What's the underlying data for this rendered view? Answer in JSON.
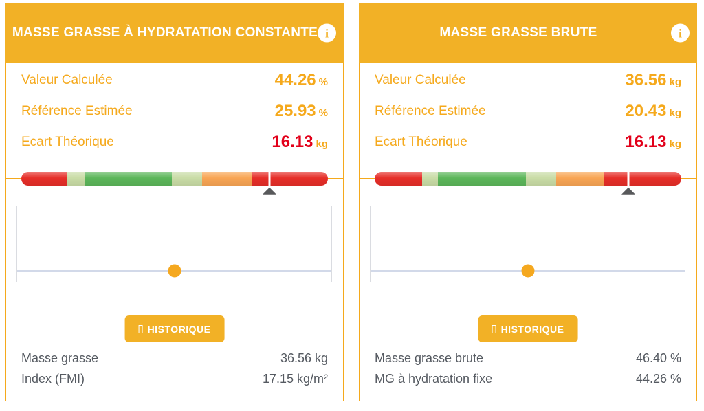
{
  "colors": {
    "orange": "#F5A91C",
    "red": "#E2001A",
    "header_bg": "#F2B126",
    "gauge_red": "#E62E28",
    "gauge_lightgreen": "#C9DCA6",
    "gauge_green": "#5CB65A",
    "gauge_orange": "#F8A554",
    "marker_gray": "#58595B"
  },
  "cards": [
    {
      "title": "MASSE GRASSE À HYDRATATION CONSTANTE",
      "info_icon": "i",
      "rows": [
        {
          "label": "Valeur Calculée",
          "value": "44.26",
          "unit": "%",
          "value_color": "orange"
        },
        {
          "label": "Référence Estimée",
          "value": "25.93",
          "unit": "%",
          "value_color": "orange"
        },
        {
          "label": "Ecart Théorique",
          "value": "16.13",
          "unit": "kg",
          "value_color": "red"
        }
      ],
      "gauge": {
        "segments": [
          {
            "color": "gauge_red",
            "width_pct": 15.0
          },
          {
            "color": "gauge_lightgreen",
            "width_pct": 5.9
          },
          {
            "color": "gauge_green",
            "width_pct": 28.1
          },
          {
            "color": "gauge_lightgreen",
            "width_pct": 10.0
          },
          {
            "color": "gauge_orange",
            "width_pct": 16.2
          },
          {
            "color": "gauge_red",
            "width_pct": 24.8
          }
        ],
        "marker_pct": 81.0
      },
      "history": {
        "dot_pct": 50
      },
      "history_button_label": "HISTORIQUE",
      "stats": [
        {
          "label": "Masse grasse",
          "value": "36.56 kg"
        },
        {
          "label": "Index (FMI)",
          "value": "17.15 kg/m²"
        }
      ]
    },
    {
      "title": "MASSE GRASSE BRUTE",
      "info_icon": "i",
      "rows": [
        {
          "label": "Valeur Calculée",
          "value": "36.56",
          "unit": "kg",
          "value_color": "orange"
        },
        {
          "label": "Référence Estimée",
          "value": "20.43",
          "unit": "kg",
          "value_color": "orange"
        },
        {
          "label": "Ecart Théorique",
          "value": "16.13",
          "unit": "kg",
          "value_color": "red"
        }
      ],
      "gauge": {
        "segments": [
          {
            "color": "gauge_red",
            "width_pct": 15.4
          },
          {
            "color": "gauge_lightgreen",
            "width_pct": 5.3
          },
          {
            "color": "gauge_green",
            "width_pct": 28.6
          },
          {
            "color": "gauge_lightgreen",
            "width_pct": 10.0
          },
          {
            "color": "gauge_orange",
            "width_pct": 15.6
          },
          {
            "color": "gauge_red",
            "width_pct": 25.1
          }
        ],
        "marker_pct": 82.7
      },
      "history": {
        "dot_pct": 50
      },
      "history_button_label": "HISTORIQUE",
      "stats": [
        {
          "label": "Masse grasse brute",
          "value": "46.40 %"
        },
        {
          "label": "MG à hydratation fixe",
          "value": "44.26 %"
        }
      ]
    }
  ]
}
